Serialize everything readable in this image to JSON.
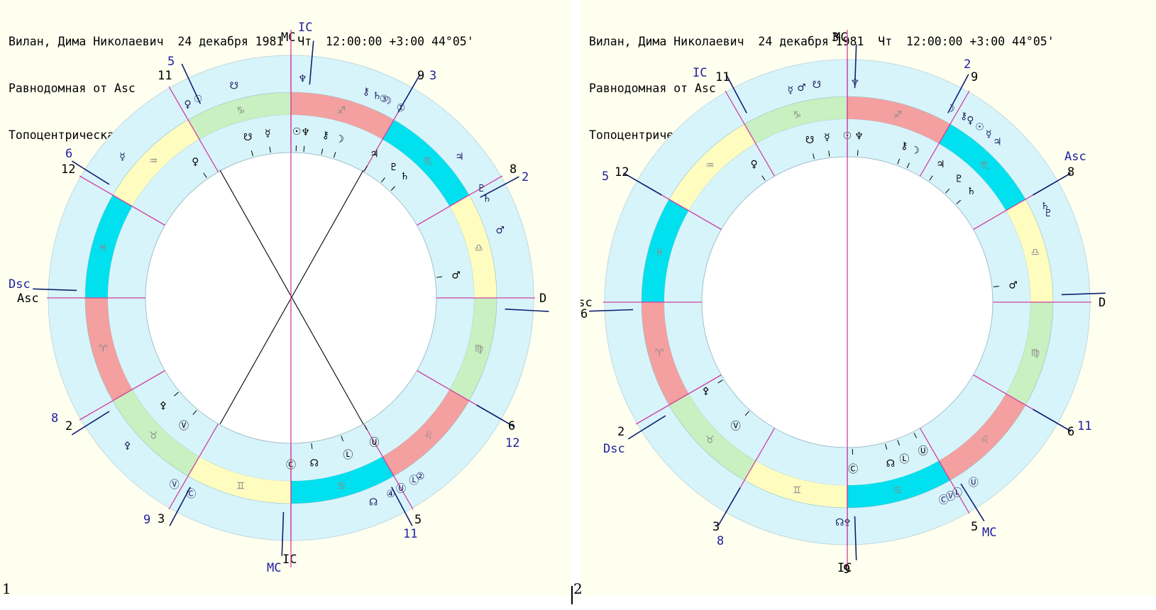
{
  "charts": [
    {
      "header": [
        "Вилан, Дима Николаевич  24 декабря 1981  Чт  12:00:00 +3:00 44°05'",
        "Равнодомная от Asc",
        "Топоцентрическая"
      ],
      "panel_number": "1",
      "sign_order": [
        "aries",
        "taurus",
        "gemini",
        "cancer",
        "leo",
        "virgo",
        "libra",
        "scorpio",
        "sagittarius",
        "capricorn",
        "aquarius",
        "pisces"
      ],
      "sign_glyphs": [
        "♈",
        "♉",
        "♊",
        "♋",
        "♌",
        "♍",
        "♎",
        "♏",
        "♐",
        "♑",
        "♒",
        "♓"
      ],
      "sign_colors": [
        "#f4a0a0",
        "#c8f0c0",
        "#fffcc0",
        "#00e0ee",
        "#f4a0a0",
        "#c8f0c0",
        "#fffcc0",
        "#00e0ee",
        "#f4a0a0",
        "#c8f0c0",
        "#fffcc0",
        "#00e0ee"
      ],
      "axis_labels": {
        "mc": "MC",
        "ic_top": "IC",
        "ic_bottom": "IC",
        "mc_bottom": "MC",
        "asc": "Asc",
        "dsc": "Dsc",
        "d": "D"
      },
      "inner_planets": [
        {
          "name": "pluto",
          "glyph": "♇"
        },
        {
          "name": "saturn",
          "glyph": "♄"
        },
        {
          "name": "mars",
          "glyph": "♂"
        },
        {
          "name": "jupiter",
          "glyph": "♃"
        },
        {
          "name": "moon",
          "glyph": "☽"
        },
        {
          "name": "chiron",
          "glyph": "⚷"
        },
        {
          "name": "neptune",
          "glyph": "♆"
        },
        {
          "name": "sun",
          "glyph": "☉"
        },
        {
          "name": "mercury",
          "glyph": "☿"
        },
        {
          "name": "node-south",
          "glyph": "☋"
        },
        {
          "name": "venus",
          "glyph": "♀"
        },
        {
          "name": "node-north",
          "glyph": "☊"
        },
        {
          "name": "pallas",
          "glyph": "⚴"
        },
        {
          "name": "v-point",
          "glyph": "Ⓥ"
        },
        {
          "name": "c-point",
          "glyph": "Ⓒ"
        },
        {
          "name": "l-point",
          "glyph": "Ⓛ"
        },
        {
          "name": "u-point",
          "glyph": "Ⓤ"
        }
      ],
      "outer_planets": [
        {
          "name": "neptune",
          "glyph": "♆"
        },
        {
          "name": "chiron",
          "glyph": "⚷"
        },
        {
          "name": "point-3",
          "glyph": "③"
        },
        {
          "name": "saturn",
          "glyph": "♄"
        },
        {
          "name": "moon",
          "glyph": "☽"
        },
        {
          "name": "point-1",
          "glyph": "①"
        },
        {
          "name": "jupiter",
          "glyph": "♃"
        },
        {
          "name": "pluto",
          "glyph": "♇"
        },
        {
          "name": "saturn-2",
          "glyph": "♄"
        },
        {
          "name": "mars",
          "glyph": "♂"
        },
        {
          "name": "venus",
          "glyph": "♀"
        },
        {
          "name": "sun",
          "glyph": "☉"
        },
        {
          "name": "node-south",
          "glyph": "☋"
        },
        {
          "name": "mercury",
          "glyph": "☿"
        },
        {
          "name": "pallas",
          "glyph": "⚴"
        },
        {
          "name": "v-point",
          "glyph": "Ⓥ"
        },
        {
          "name": "c-point",
          "glyph": "Ⓒ"
        },
        {
          "name": "u-point",
          "glyph": "Ⓤ"
        },
        {
          "name": "l-point",
          "glyph": "Ⓛ"
        },
        {
          "name": "point-2",
          "glyph": "②"
        },
        {
          "name": "node-north",
          "glyph": "☊"
        },
        {
          "name": "point-4",
          "glyph": "④"
        }
      ],
      "house_numbers": [
        {
          "inner": "11",
          "outer": "5"
        },
        {
          "inner": "12",
          "outer": "6"
        },
        {
          "inner": "2",
          "outer": "8"
        },
        {
          "inner": "3",
          "outer": "9"
        },
        {
          "inner": "5",
          "outer": "11"
        },
        {
          "inner": "6",
          "outer": "12"
        },
        {
          "inner": "8",
          "outer": "2"
        },
        {
          "inner": "9",
          "outer": "3"
        }
      ]
    },
    {
      "header": [
        "Вилан, Дима Николаевич  24 декабря 1981  Чт  12:00:00 +3:00 44°05'",
        "Равнодомная от Asc",
        "Топоцентрическая"
      ],
      "panel_number": "2",
      "axis_labels": {
        "mc": "MC",
        "ic": "IC",
        "ic_bottom": "IC",
        "mc_bottom": "MC",
        "asc": "Asc",
        "asc_right": "Asc",
        "dsc": "Dsc",
        "d": "D"
      },
      "inner_planets": [
        {
          "name": "pluto",
          "glyph": "♇"
        },
        {
          "name": "saturn",
          "glyph": "♄"
        },
        {
          "name": "mars",
          "glyph": "♂"
        },
        {
          "name": "jupiter",
          "glyph": "♃"
        },
        {
          "name": "moon",
          "glyph": "☽"
        },
        {
          "name": "chiron",
          "glyph": "⚷"
        },
        {
          "name": "neptune",
          "glyph": "♆"
        },
        {
          "name": "sun",
          "glyph": "☉"
        },
        {
          "name": "mercury",
          "glyph": "☿"
        },
        {
          "name": "node-south",
          "glyph": "☋"
        },
        {
          "name": "venus",
          "glyph": "♀"
        },
        {
          "name": "node-north",
          "glyph": "☊"
        },
        {
          "name": "pallas",
          "glyph": "⚴"
        },
        {
          "name": "v-point",
          "glyph": "Ⓥ"
        },
        {
          "name": "c-point",
          "glyph": "Ⓒ"
        },
        {
          "name": "l-point",
          "glyph": "Ⓛ"
        },
        {
          "name": "u-point",
          "glyph": "Ⓤ"
        }
      ],
      "outer_planets": [
        {
          "name": "neptune",
          "glyph": "♆"
        },
        {
          "name": "node-south",
          "glyph": "☋"
        },
        {
          "name": "mars",
          "glyph": "♂"
        },
        {
          "name": "mercury",
          "glyph": "☿"
        },
        {
          "name": "chiron",
          "glyph": "⚷"
        },
        {
          "name": "moon",
          "glyph": "☽"
        },
        {
          "name": "venus",
          "glyph": "♀"
        },
        {
          "name": "sun",
          "glyph": "☉"
        },
        {
          "name": "mercury-2",
          "glyph": "☿"
        },
        {
          "name": "jupiter",
          "glyph": "♃"
        },
        {
          "name": "saturn",
          "glyph": "♄"
        },
        {
          "name": "pluto",
          "glyph": "♇"
        },
        {
          "name": "l-point",
          "glyph": "Ⓛ"
        },
        {
          "name": "v-point",
          "glyph": "Ⓥ"
        },
        {
          "name": "c-point",
          "glyph": "Ⓒ"
        },
        {
          "name": "u-point",
          "glyph": "Ⓤ"
        },
        {
          "name": "node-north",
          "glyph": "☊"
        },
        {
          "name": "pallas",
          "glyph": "⚴"
        }
      ],
      "house_numbers": [
        {
          "inner": "11",
          "outer": ""
        },
        {
          "inner": "12",
          "outer": "5"
        },
        {
          "inner": "6",
          "outer": ""
        },
        {
          "inner": "2",
          "outer": ""
        },
        {
          "inner": "3",
          "outer": "8"
        },
        {
          "inner": "5",
          "outer": ""
        },
        {
          "inner": "6",
          "outer": "11"
        },
        {
          "inner": "8",
          "outer": ""
        },
        {
          "inner": "9",
          "outer": "2"
        },
        {
          "inner": "3",
          "outer": ""
        },
        {
          "inner": "9",
          "outer": ""
        }
      ]
    }
  ]
}
